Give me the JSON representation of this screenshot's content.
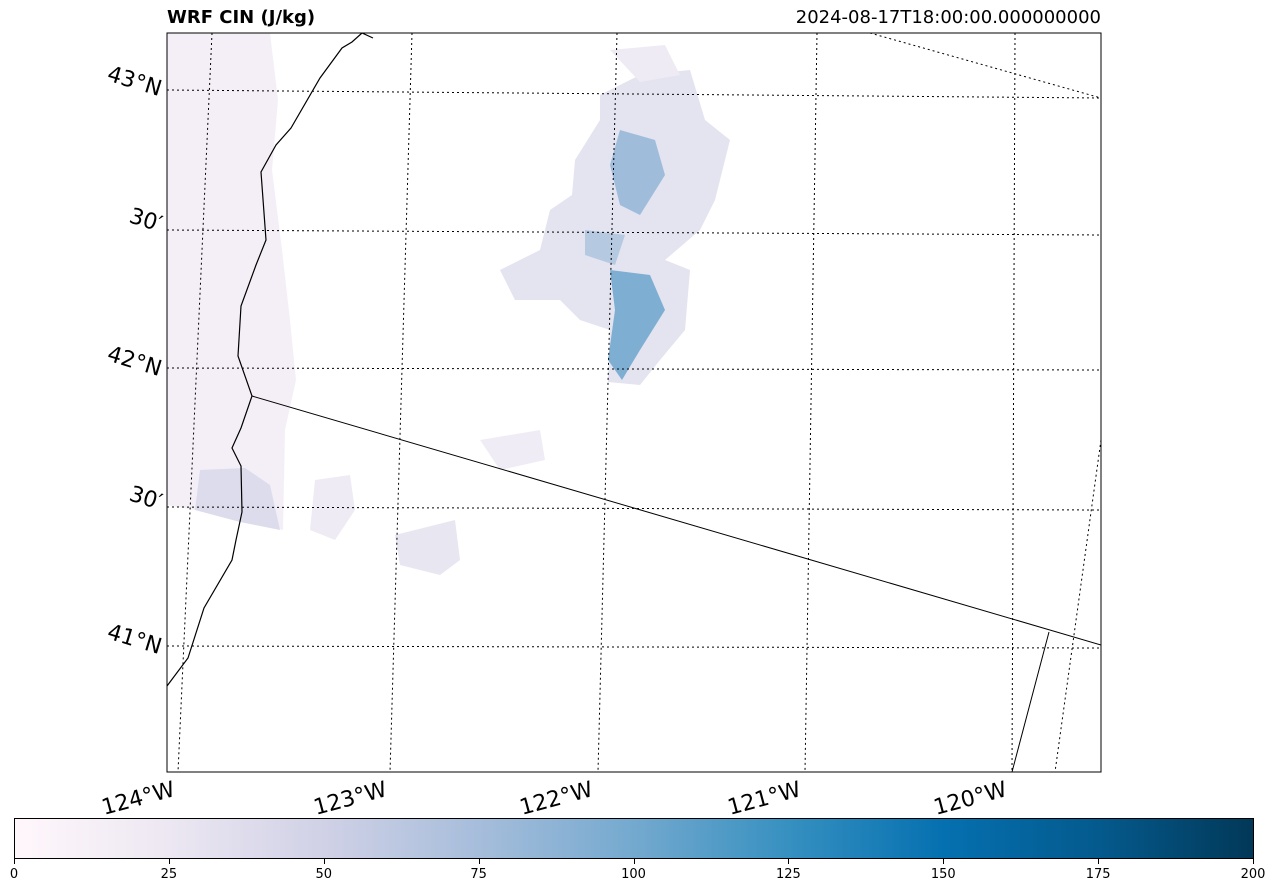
{
  "header": {
    "title": "WRF CIN (J/kg)",
    "timestamp": "2024-08-17T18:00:00.000000000"
  },
  "map": {
    "variable": "CIN",
    "units": "J/kg",
    "lat_labels": [
      {
        "text": "43°N",
        "lat": 43.0
      },
      {
        "text": "30′",
        "lat": 42.5
      },
      {
        "text": "42°N",
        "lat": 42.0
      },
      {
        "text": "30′",
        "lat": 41.5
      },
      {
        "text": "41°N",
        "lat": 41.0
      }
    ],
    "lon_labels": [
      {
        "text": "124°W",
        "lon": -124
      },
      {
        "text": "123°W",
        "lon": -123
      },
      {
        "text": "122°W",
        "lon": -122
      },
      {
        "text": "121°W",
        "lon": -121
      },
      {
        "text": "120°W",
        "lon": -120
      }
    ],
    "gridlines": "dotted",
    "features": [
      "coastline",
      "state-border"
    ],
    "colormap": "PuBu"
  },
  "colorbar": {
    "min": 0,
    "max": 200,
    "ticks": [
      "0",
      "25",
      "50",
      "75",
      "100",
      "125",
      "150",
      "175",
      "200"
    ],
    "colors": [
      "#fff7fb",
      "#ece7f2",
      "#d0d1e6",
      "#a6bddb",
      "#74a9cf",
      "#3690c0",
      "#0570b0",
      "#045a8d",
      "#023858"
    ]
  }
}
